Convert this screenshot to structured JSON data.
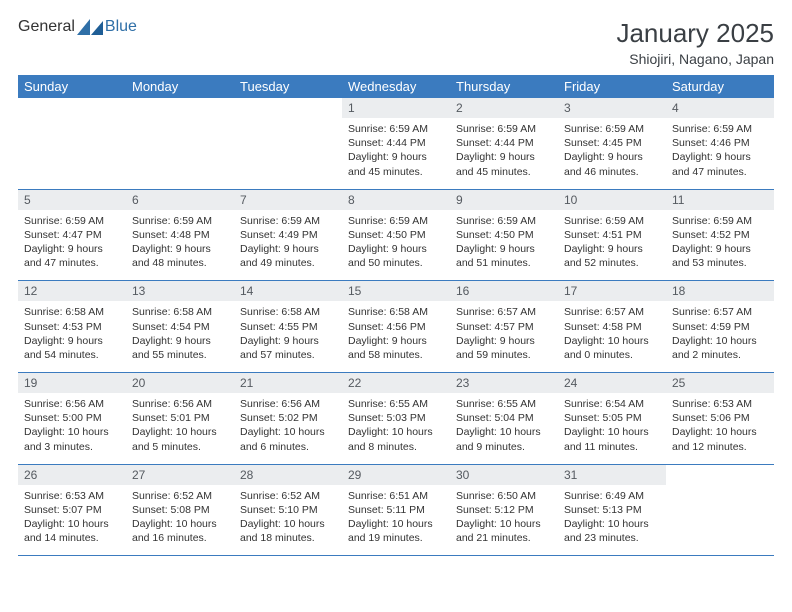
{
  "brand": {
    "general": "General",
    "blue": "Blue"
  },
  "title": "January 2025",
  "location": "Shiojiri, Nagano, Japan",
  "colors": {
    "header_bg": "#3b7bbf",
    "header_text": "#ffffff",
    "daynum_bg": "#ebedef",
    "daynum_text": "#555a60",
    "body_text": "#333333",
    "rule": "#3b7bbf",
    "page_bg": "#ffffff",
    "title_color": "#3a3f44",
    "logo_gray": "#646a70",
    "logo_blue": "#2f6fa7"
  },
  "typography": {
    "title_fontsize": 26,
    "subtitle_fontsize": 14,
    "dayheader_fontsize": 13,
    "daynum_fontsize": 12,
    "body_fontsize": 10.5,
    "font_family": "Arial"
  },
  "layout": {
    "columns": 7,
    "rows": 5,
    "first_day_column_index": 3
  },
  "day_headers": [
    "Sunday",
    "Monday",
    "Tuesday",
    "Wednesday",
    "Thursday",
    "Friday",
    "Saturday"
  ],
  "days": [
    {
      "n": "1",
      "sunrise": "6:59 AM",
      "sunset": "4:44 PM",
      "daylight": "9 hours and 45 minutes."
    },
    {
      "n": "2",
      "sunrise": "6:59 AM",
      "sunset": "4:44 PM",
      "daylight": "9 hours and 45 minutes."
    },
    {
      "n": "3",
      "sunrise": "6:59 AM",
      "sunset": "4:45 PM",
      "daylight": "9 hours and 46 minutes."
    },
    {
      "n": "4",
      "sunrise": "6:59 AM",
      "sunset": "4:46 PM",
      "daylight": "9 hours and 47 minutes."
    },
    {
      "n": "5",
      "sunrise": "6:59 AM",
      "sunset": "4:47 PM",
      "daylight": "9 hours and 47 minutes."
    },
    {
      "n": "6",
      "sunrise": "6:59 AM",
      "sunset": "4:48 PM",
      "daylight": "9 hours and 48 minutes."
    },
    {
      "n": "7",
      "sunrise": "6:59 AM",
      "sunset": "4:49 PM",
      "daylight": "9 hours and 49 minutes."
    },
    {
      "n": "8",
      "sunrise": "6:59 AM",
      "sunset": "4:50 PM",
      "daylight": "9 hours and 50 minutes."
    },
    {
      "n": "9",
      "sunrise": "6:59 AM",
      "sunset": "4:50 PM",
      "daylight": "9 hours and 51 minutes."
    },
    {
      "n": "10",
      "sunrise": "6:59 AM",
      "sunset": "4:51 PM",
      "daylight": "9 hours and 52 minutes."
    },
    {
      "n": "11",
      "sunrise": "6:59 AM",
      "sunset": "4:52 PM",
      "daylight": "9 hours and 53 minutes."
    },
    {
      "n": "12",
      "sunrise": "6:58 AM",
      "sunset": "4:53 PM",
      "daylight": "9 hours and 54 minutes."
    },
    {
      "n": "13",
      "sunrise": "6:58 AM",
      "sunset": "4:54 PM",
      "daylight": "9 hours and 55 minutes."
    },
    {
      "n": "14",
      "sunrise": "6:58 AM",
      "sunset": "4:55 PM",
      "daylight": "9 hours and 57 minutes."
    },
    {
      "n": "15",
      "sunrise": "6:58 AM",
      "sunset": "4:56 PM",
      "daylight": "9 hours and 58 minutes."
    },
    {
      "n": "16",
      "sunrise": "6:57 AM",
      "sunset": "4:57 PM",
      "daylight": "9 hours and 59 minutes."
    },
    {
      "n": "17",
      "sunrise": "6:57 AM",
      "sunset": "4:58 PM",
      "daylight": "10 hours and 0 minutes."
    },
    {
      "n": "18",
      "sunrise": "6:57 AM",
      "sunset": "4:59 PM",
      "daylight": "10 hours and 2 minutes."
    },
    {
      "n": "19",
      "sunrise": "6:56 AM",
      "sunset": "5:00 PM",
      "daylight": "10 hours and 3 minutes."
    },
    {
      "n": "20",
      "sunrise": "6:56 AM",
      "sunset": "5:01 PM",
      "daylight": "10 hours and 5 minutes."
    },
    {
      "n": "21",
      "sunrise": "6:56 AM",
      "sunset": "5:02 PM",
      "daylight": "10 hours and 6 minutes."
    },
    {
      "n": "22",
      "sunrise": "6:55 AM",
      "sunset": "5:03 PM",
      "daylight": "10 hours and 8 minutes."
    },
    {
      "n": "23",
      "sunrise": "6:55 AM",
      "sunset": "5:04 PM",
      "daylight": "10 hours and 9 minutes."
    },
    {
      "n": "24",
      "sunrise": "6:54 AM",
      "sunset": "5:05 PM",
      "daylight": "10 hours and 11 minutes."
    },
    {
      "n": "25",
      "sunrise": "6:53 AM",
      "sunset": "5:06 PM",
      "daylight": "10 hours and 12 minutes."
    },
    {
      "n": "26",
      "sunrise": "6:53 AM",
      "sunset": "5:07 PM",
      "daylight": "10 hours and 14 minutes."
    },
    {
      "n": "27",
      "sunrise": "6:52 AM",
      "sunset": "5:08 PM",
      "daylight": "10 hours and 16 minutes."
    },
    {
      "n": "28",
      "sunrise": "6:52 AM",
      "sunset": "5:10 PM",
      "daylight": "10 hours and 18 minutes."
    },
    {
      "n": "29",
      "sunrise": "6:51 AM",
      "sunset": "5:11 PM",
      "daylight": "10 hours and 19 minutes."
    },
    {
      "n": "30",
      "sunrise": "6:50 AM",
      "sunset": "5:12 PM",
      "daylight": "10 hours and 21 minutes."
    },
    {
      "n": "31",
      "sunrise": "6:49 AM",
      "sunset": "5:13 PM",
      "daylight": "10 hours and 23 minutes."
    }
  ],
  "labels": {
    "sunrise": "Sunrise:",
    "sunset": "Sunset:",
    "daylight": "Daylight:"
  }
}
